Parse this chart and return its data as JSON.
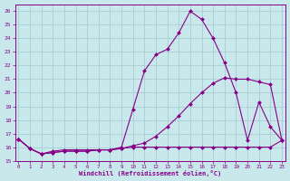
{
  "bg_color": "#c8e8ec",
  "grid_color": "#a8cdd4",
  "line_color": "#880088",
  "xlim": [
    0,
    23
  ],
  "ylim": [
    15,
    26.5
  ],
  "xticks": [
    0,
    1,
    2,
    3,
    4,
    5,
    6,
    7,
    8,
    9,
    10,
    11,
    12,
    13,
    14,
    15,
    16,
    17,
    18,
    19,
    20,
    21,
    22,
    23
  ],
  "yticks": [
    15,
    16,
    17,
    18,
    19,
    20,
    21,
    22,
    23,
    24,
    25,
    26
  ],
  "xlabel": "Windchill (Refroidissement éolien,°C)",
  "curve1_x": [
    0,
    1,
    2,
    3,
    4,
    5,
    6,
    7,
    8,
    9,
    10,
    11,
    12,
    13,
    14,
    15,
    16,
    17,
    18,
    19,
    20,
    21,
    22,
    23
  ],
  "curve1_y": [
    16.6,
    15.9,
    15.5,
    15.7,
    15.8,
    15.8,
    15.8,
    15.8,
    15.8,
    16.0,
    18.8,
    21.6,
    22.8,
    23.2,
    24.4,
    26.0,
    25.4,
    24.0,
    22.2,
    20.0,
    16.5,
    19.3,
    17.5,
    16.5
  ],
  "curve2_x": [
    0,
    1,
    2,
    3,
    4,
    5,
    6,
    7,
    8,
    9,
    10,
    11,
    12,
    13,
    14,
    15,
    16,
    17,
    18,
    19,
    20,
    21,
    22,
    23
  ],
  "curve2_y": [
    16.6,
    15.9,
    15.5,
    15.6,
    15.7,
    15.7,
    15.7,
    15.8,
    15.8,
    15.9,
    16.1,
    16.3,
    16.8,
    17.5,
    18.3,
    19.2,
    20.0,
    20.7,
    21.1,
    21.0,
    21.0,
    20.8,
    20.6,
    16.5
  ],
  "curve3_x": [
    0,
    1,
    2,
    3,
    4,
    5,
    6,
    7,
    8,
    9,
    10,
    11,
    12,
    13,
    14,
    15,
    16,
    17,
    18,
    19,
    20,
    21,
    22,
    23
  ],
  "curve3_y": [
    16.6,
    15.9,
    15.5,
    15.6,
    15.7,
    15.7,
    15.7,
    15.8,
    15.8,
    15.9,
    16.0,
    16.0,
    16.0,
    16.0,
    16.0,
    16.0,
    16.0,
    16.0,
    16.0,
    16.0,
    16.0,
    16.0,
    16.0,
    16.5
  ]
}
